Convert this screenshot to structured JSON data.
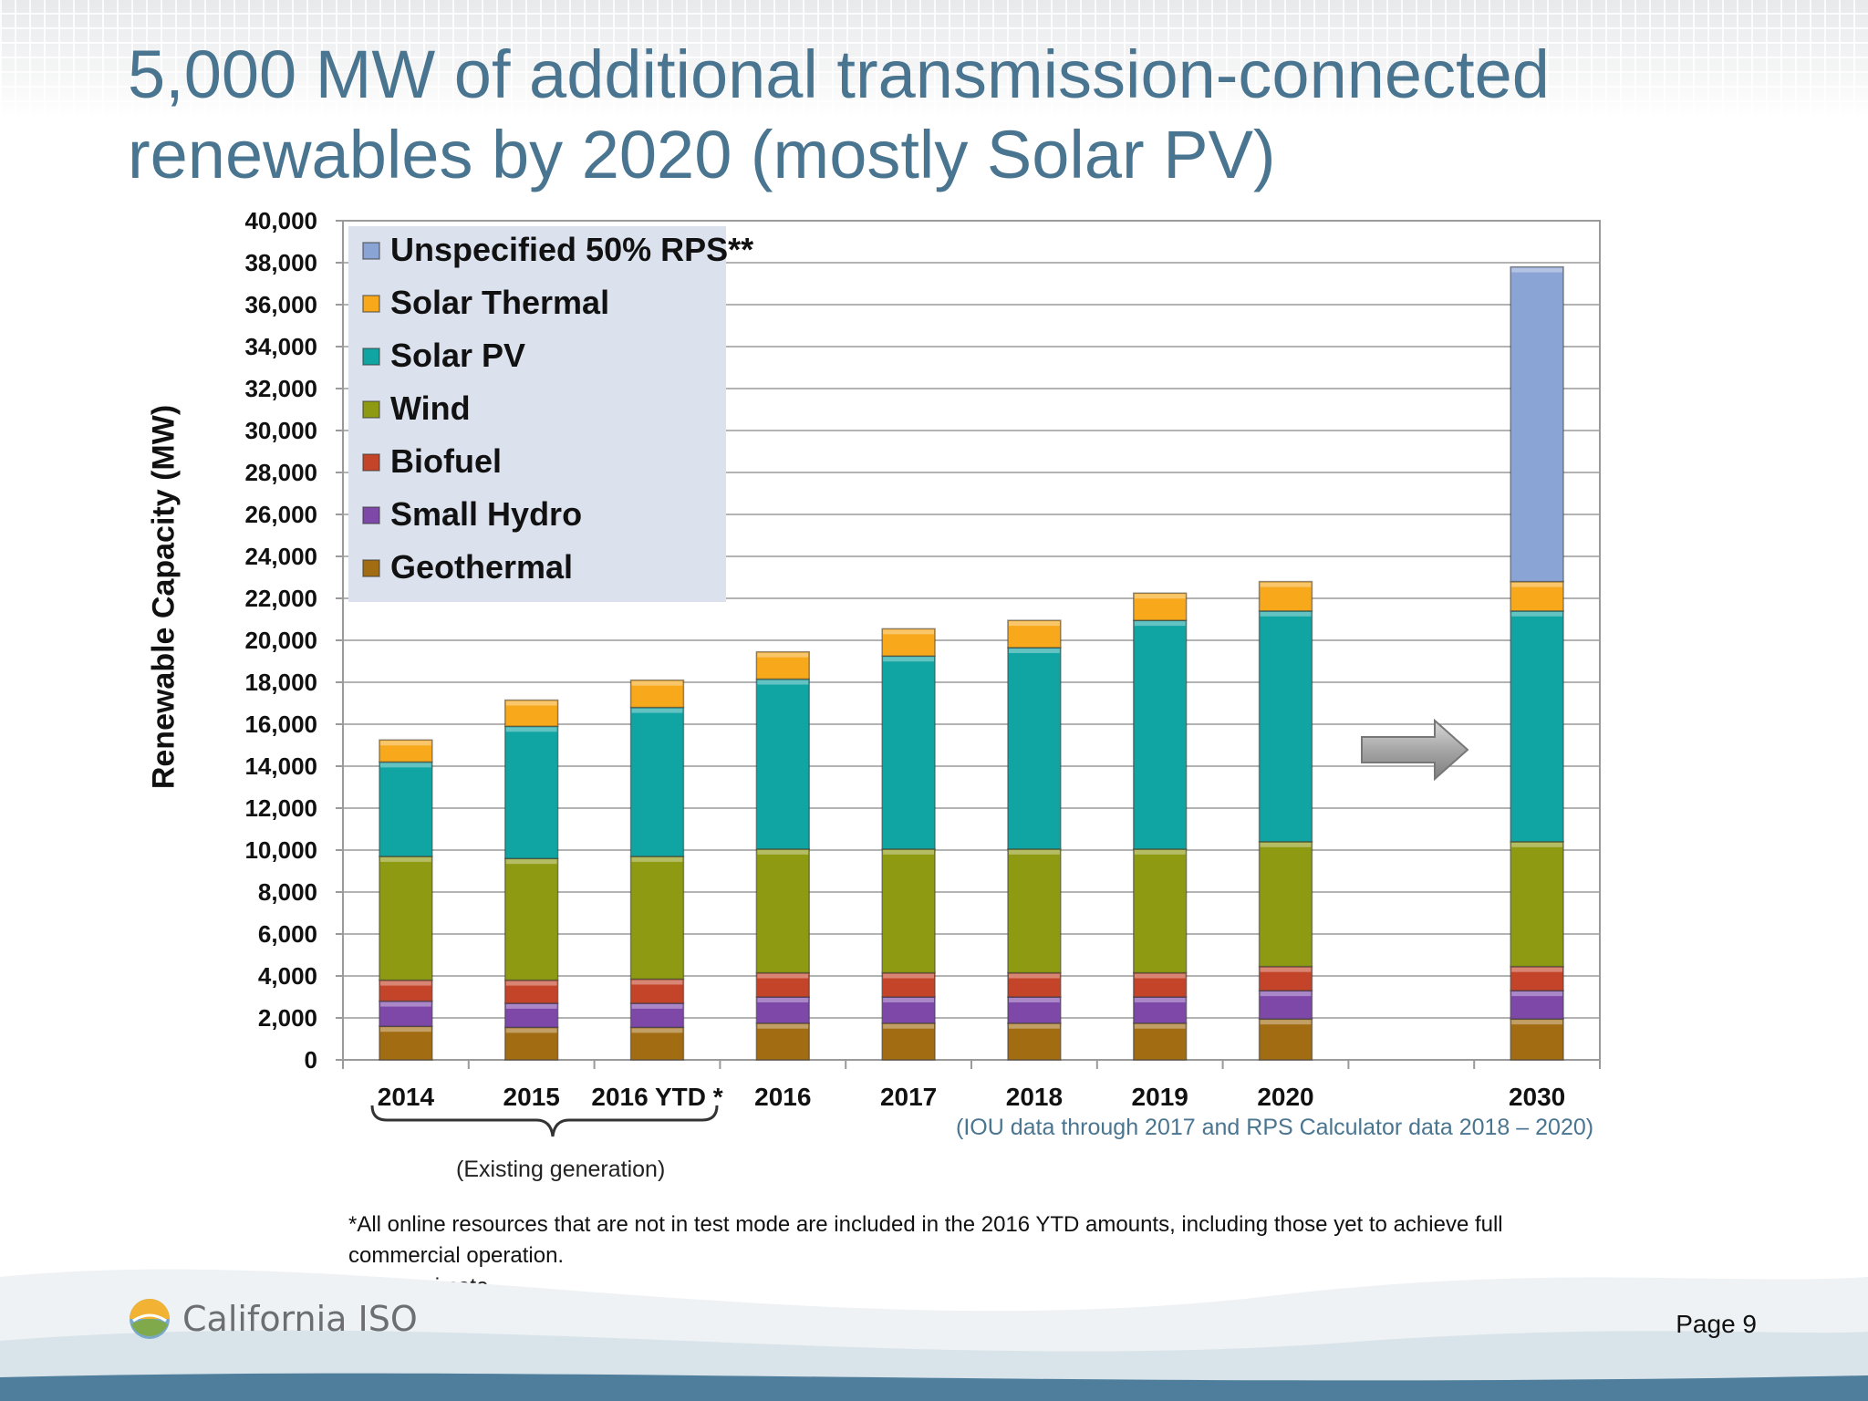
{
  "slide": {
    "title_line1": "5,000 MW of additional transmission-connected",
    "title_line2": "renewables by 2020 (mostly Solar PV)",
    "source_note": "(IOU data through 2017 and RPS Calculator data 2018 – 2020)",
    "existing_note": "(Existing generation)",
    "footnote1": "*All online resources that are not in test mode are included in the 2016 YTD amounts, including those yet to achieve full",
    "footnote2": "commercial operation.",
    "footnote3": "**Approximate",
    "logo_text": "California ISO",
    "page_label": "Page 9"
  },
  "chart_data": {
    "type": "bar",
    "stacked": true,
    "ylabel": "Renewable Capacity (MW)",
    "xlabel": "",
    "ylim": [
      0,
      40000
    ],
    "yticks": [
      "0",
      "2,000",
      "4,000",
      "6,000",
      "8,000",
      "10,000",
      "12,000",
      "14,000",
      "16,000",
      "18,000",
      "20,000",
      "22,000",
      "24,000",
      "26,000",
      "28,000",
      "30,000",
      "32,000",
      "34,000",
      "36,000",
      "38,000",
      "40,000"
    ],
    "categories": [
      "2014",
      "2015",
      "2016 YTD *",
      "2016",
      "2017",
      "2018",
      "2019",
      "2020",
      "2030"
    ],
    "grid": true,
    "legend_position": "top-left",
    "series": [
      {
        "name": "Geothermal",
        "color": "#a26c12",
        "values": [
          1600,
          1550,
          1550,
          1750,
          1750,
          1750,
          1750,
          1950,
          1950
        ]
      },
      {
        "name": "Small Hydro",
        "color": "#7d48a8",
        "values": [
          1200,
          1150,
          1150,
          1250,
          1250,
          1250,
          1250,
          1350,
          1350
        ]
      },
      {
        "name": "Biofuel",
        "color": "#c4442a",
        "values": [
          1000,
          1100,
          1150,
          1150,
          1150,
          1150,
          1150,
          1150,
          1150
        ]
      },
      {
        "name": "Wind",
        "color": "#8d9a12",
        "values": [
          5900,
          5800,
          5850,
          5900,
          5900,
          5900,
          5900,
          5950,
          5950
        ]
      },
      {
        "name": "Solar PV",
        "color": "#10a4a3",
        "values": [
          4500,
          6300,
          7100,
          8100,
          9200,
          9600,
          10900,
          11000,
          11000
        ]
      },
      {
        "name": "Solar Thermal",
        "color": "#f7a81b",
        "values": [
          1050,
          1250,
          1300,
          1300,
          1300,
          1300,
          1300,
          1400,
          1400
        ]
      },
      {
        "name": "Unspecified 50% RPS**",
        "color": "#8aa4d6",
        "values": [
          0,
          0,
          0,
          0,
          0,
          0,
          0,
          0,
          15000
        ]
      }
    ],
    "legend_order": [
      "Unspecified 50% RPS**",
      "Solar Thermal",
      "Solar PV",
      "Wind",
      "Biofuel",
      "Small Hydro",
      "Geothermal"
    ]
  }
}
